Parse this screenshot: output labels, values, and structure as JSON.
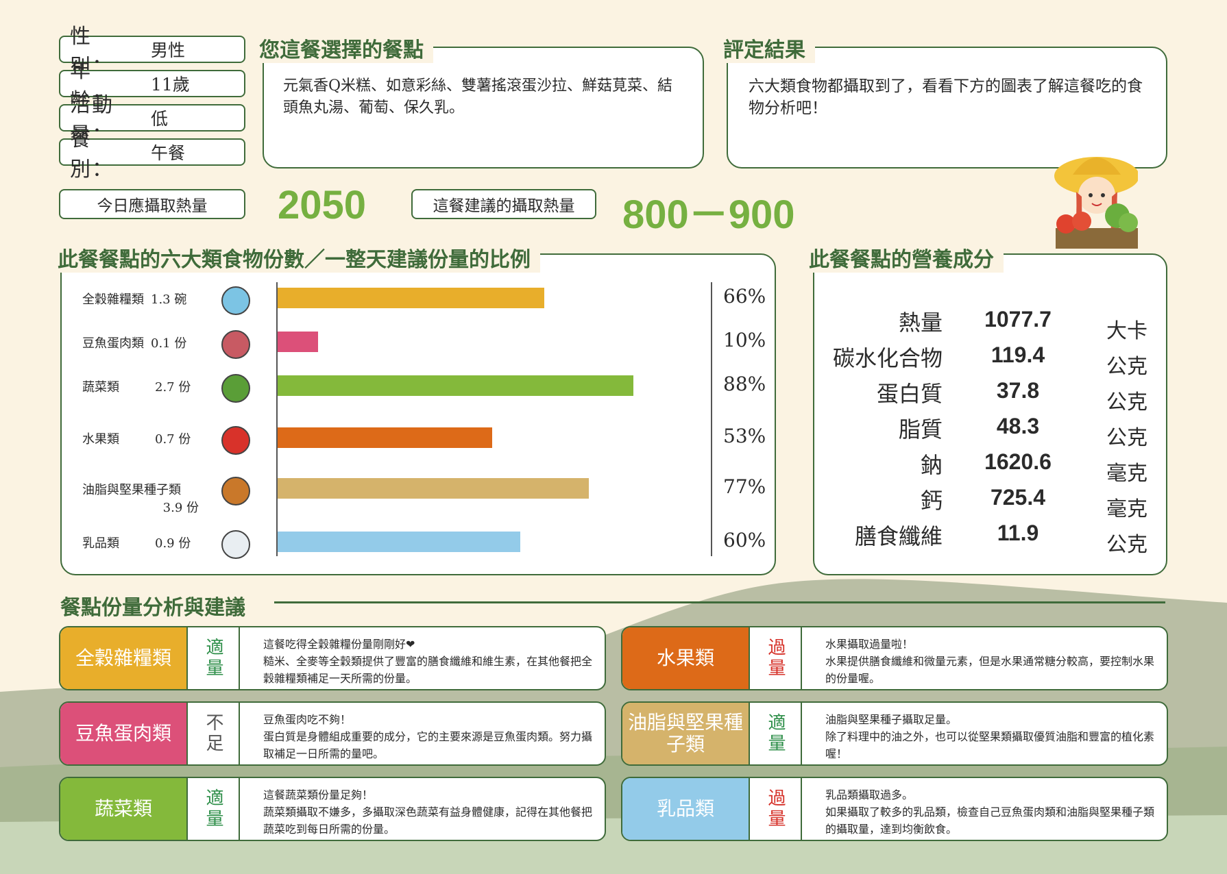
{
  "profile": [
    {
      "key": "性　別：",
      "value": "男性"
    },
    {
      "key": "年　齡：",
      "value": "11歲"
    },
    {
      "key": "活動量：",
      "value": "低"
    },
    {
      "key": "餐　別：",
      "value": "午餐"
    }
  ],
  "meal": {
    "title": "您這餐選擇的餐點",
    "text": "元氣香Q米糕、如意彩絲、雙薯搖滾蛋沙拉、鮮菇莧菜、結頭魚丸湯、葡萄、保久乳。"
  },
  "result": {
    "title": "評定結果",
    "text": "六大類食物都攝取到了，看看下方的圖表了解這餐吃的食物分析吧！"
  },
  "calories": {
    "daily_label": "今日應攝取熱量",
    "daily_value": "2050",
    "meal_label": "這餐建議的攝取熱量",
    "meal_value": "800－900"
  },
  "chart_data": {
    "type": "bar",
    "title": "此餐餐點的六大類食物份數／一整天建議份量的比例",
    "categories": [
      "全穀雜糧類",
      "豆魚蛋肉類",
      "蔬菜類",
      "水果類",
      "油脂與堅果種子類",
      "乳品類"
    ],
    "servings": [
      "1.3 碗",
      "0.1 份",
      "2.7 份",
      "0.7 份",
      "3.9 份",
      "0.9 份"
    ],
    "values": [
      66,
      10,
      88,
      53,
      77,
      60
    ],
    "value_labels": [
      "66%",
      "10%",
      "88%",
      "53%",
      "77%",
      "60%"
    ],
    "colors": [
      "#e8ae2b",
      "#dc5079",
      "#84b93b",
      "#dd6a18",
      "#d5b36b",
      "#93cbe9"
    ],
    "icons": [
      "rice-bowl-icon",
      "steak-icon",
      "broccoli-icon",
      "apple-icon",
      "nuts-icon",
      "milk-bottle-icon"
    ]
  },
  "nutrition": {
    "title": "此餐餐點的營養成分",
    "rows": [
      {
        "name": "熱量",
        "value": "1077.7",
        "unit": "大卡"
      },
      {
        "name": "碳水化合物",
        "value": "119.4",
        "unit": "公克"
      },
      {
        "name": "蛋白質",
        "value": "37.8",
        "unit": "公克"
      },
      {
        "name": "脂質",
        "value": "48.3",
        "unit": "公克"
      },
      {
        "name": "鈉",
        "value": "1620.6",
        "unit": "毫克"
      },
      {
        "name": "鈣",
        "value": "725.4",
        "unit": "毫克"
      },
      {
        "name": "膳食纖維",
        "value": "11.9",
        "unit": "公克"
      }
    ]
  },
  "analysis": {
    "title": "餐點份量分析與建議",
    "cards": [
      {
        "category": "全穀雜糧類",
        "status": "適量",
        "color": "#e8ae2b",
        "status_color": "#2f8f4a",
        "text": "這餐吃得全穀雜糧份量剛剛好❤\n糙米、全麥等全穀類提供了豐富的膳食纖維和維生素，在其他餐把全穀雜糧類補足一天所需的份量。"
      },
      {
        "category": "水果類",
        "status": "過量",
        "color": "#dd6a18",
        "status_color": "#d6322a",
        "text": "水果攝取過量啦！\n水果提供膳食纖維和微量元素，但是水果通常糖分較高，要控制水果的份量喔。"
      },
      {
        "category": "豆魚蛋肉類",
        "status": "不足",
        "color": "#dc5079",
        "status_color": "#555555",
        "text": "豆魚蛋肉吃不夠！\n蛋白質是身體組成重要的成分，它的主要來源是豆魚蛋肉類。努力攝取補足一日所需的量吧。"
      },
      {
        "category": "油脂與堅果種子類",
        "status": "適量",
        "color": "#d5b36b",
        "status_color": "#2f8f4a",
        "text": "油脂與堅果種子攝取足量。\n除了料理中的油之外，也可以從堅果類攝取優質油脂和豐富的植化素喔！"
      },
      {
        "category": "蔬菜類",
        "status": "適量",
        "color": "#84b93b",
        "status_color": "#2f8f4a",
        "text": "這餐蔬菜類份量足夠！\n蔬菜類攝取不嫌多，多攝取深色蔬菜有益身體健康，記得在其他餐把蔬菜吃到每日所需的份量。"
      },
      {
        "category": "乳品類",
        "status": "過量",
        "color": "#93cbe9",
        "status_color": "#d6322a",
        "text": "乳品類攝取過多。\n如果攝取了較多的乳品類，檢查自己豆魚蛋肉類和油脂與堅果種子類的攝取量，達到均衡飲食。"
      }
    ]
  }
}
